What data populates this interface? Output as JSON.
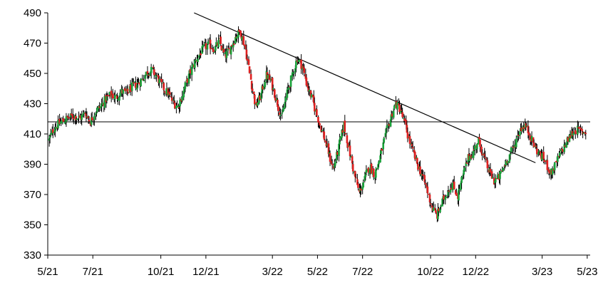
{
  "chart_data": {
    "type": "candlestick",
    "title": "",
    "xlabel": "",
    "ylabel": "",
    "ylim": [
      330,
      490
    ],
    "yticks": [
      330,
      350,
      370,
      390,
      410,
      430,
      450,
      470,
      490
    ],
    "xticks": [
      {
        "label": "5/21",
        "date": "2021-05-01"
      },
      {
        "label": "7/21",
        "date": "2021-07-01"
      },
      {
        "label": "10/21",
        "date": "2021-10-01"
      },
      {
        "label": "12/21",
        "date": "2021-12-01"
      },
      {
        "label": "3/22",
        "date": "2022-03-01"
      },
      {
        "label": "5/22",
        "date": "2022-05-01"
      },
      {
        "label": "7/22",
        "date": "2022-07-01"
      },
      {
        "label": "10/22",
        "date": "2022-10-01"
      },
      {
        "label": "12/22",
        "date": "2022-12-01"
      },
      {
        "label": "3/23",
        "date": "2023-03-01"
      },
      {
        "label": "5/23",
        "date": "2023-05-01"
      }
    ],
    "xlim": [
      "2021-05-01",
      "2023-05-05"
    ],
    "up_color": "#1aa33a",
    "down_color": "#e02020",
    "wick_color": "#000000",
    "series": [
      {
        "values": [
          [
            "2021-05-03",
            406
          ],
          [
            "2021-05-10",
            414
          ],
          [
            "2021-05-17",
            417
          ],
          [
            "2021-05-24",
            419
          ],
          [
            "2021-05-31",
            421
          ],
          [
            "2021-06-07",
            422
          ],
          [
            "2021-06-14",
            420
          ],
          [
            "2021-06-21",
            424
          ],
          [
            "2021-06-28",
            418
          ],
          [
            "2021-07-05",
            425
          ],
          [
            "2021-07-12",
            428
          ],
          [
            "2021-07-19",
            433
          ],
          [
            "2021-07-26",
            436
          ],
          [
            "2021-08-02",
            434
          ],
          [
            "2021-08-09",
            438
          ],
          [
            "2021-08-16",
            437
          ],
          [
            "2021-08-23",
            441
          ],
          [
            "2021-08-30",
            443
          ],
          [
            "2021-09-06",
            446
          ],
          [
            "2021-09-13",
            451
          ],
          [
            "2021-09-20",
            452
          ],
          [
            "2021-09-27",
            447
          ],
          [
            "2021-10-04",
            441
          ],
          [
            "2021-10-11",
            437
          ],
          [
            "2021-10-18",
            431
          ],
          [
            "2021-10-25",
            428
          ],
          [
            "2021-11-01",
            438
          ],
          [
            "2021-11-08",
            448
          ],
          [
            "2021-11-15",
            456
          ],
          [
            "2021-11-22",
            462
          ],
          [
            "2021-11-29",
            467
          ],
          [
            "2021-12-06",
            469
          ],
          [
            "2021-12-13",
            466
          ],
          [
            "2021-12-20",
            471
          ],
          [
            "2021-12-27",
            461
          ],
          [
            "2022-01-03",
            466
          ],
          [
            "2022-01-10",
            474
          ],
          [
            "2022-01-17",
            478
          ],
          [
            "2022-01-24",
            466
          ],
          [
            "2022-01-31",
            446
          ],
          [
            "2022-02-07",
            428
          ],
          [
            "2022-02-14",
            436
          ],
          [
            "2022-02-21",
            449
          ],
          [
            "2022-02-28",
            444
          ],
          [
            "2022-03-07",
            432
          ],
          [
            "2022-03-14",
            421
          ],
          [
            "2022-03-21",
            437
          ],
          [
            "2022-03-28",
            448
          ],
          [
            "2022-04-04",
            460
          ],
          [
            "2022-04-11",
            455
          ],
          [
            "2022-04-18",
            441
          ],
          [
            "2022-04-25",
            432
          ],
          [
            "2022-05-02",
            420
          ],
          [
            "2022-05-09",
            410
          ],
          [
            "2022-05-16",
            398
          ],
          [
            "2022-05-23",
            387
          ],
          [
            "2022-05-30",
            401
          ],
          [
            "2022-06-06",
            416
          ],
          [
            "2022-06-13",
            400
          ],
          [
            "2022-06-20",
            384
          ],
          [
            "2022-06-27",
            371
          ],
          [
            "2022-07-04",
            380
          ],
          [
            "2022-07-11",
            389
          ],
          [
            "2022-07-18",
            383
          ],
          [
            "2022-07-25",
            395
          ],
          [
            "2022-08-01",
            408
          ],
          [
            "2022-08-08",
            420
          ],
          [
            "2022-08-15",
            430
          ],
          [
            "2022-08-22",
            426
          ],
          [
            "2022-08-29",
            414
          ],
          [
            "2022-09-05",
            402
          ],
          [
            "2022-09-12",
            392
          ],
          [
            "2022-09-19",
            384
          ],
          [
            "2022-09-26",
            374
          ],
          [
            "2022-10-03",
            362
          ],
          [
            "2022-10-10",
            356
          ],
          [
            "2022-10-17",
            365
          ],
          [
            "2022-10-24",
            372
          ],
          [
            "2022-10-31",
            377
          ],
          [
            "2022-11-07",
            369
          ],
          [
            "2022-11-14",
            382
          ],
          [
            "2022-11-21",
            394
          ],
          [
            "2022-11-28",
            398
          ],
          [
            "2022-12-05",
            406
          ],
          [
            "2022-12-12",
            396
          ],
          [
            "2022-12-19",
            386
          ],
          [
            "2022-12-26",
            379
          ],
          [
            "2023-01-02",
            381
          ],
          [
            "2023-01-09",
            389
          ],
          [
            "2023-01-16",
            396
          ],
          [
            "2023-01-23",
            402
          ],
          [
            "2023-01-30",
            413
          ],
          [
            "2023-02-06",
            416
          ],
          [
            "2023-02-13",
            409
          ],
          [
            "2023-02-20",
            401
          ],
          [
            "2023-02-27",
            396
          ],
          [
            "2023-03-06",
            392
          ],
          [
            "2023-03-13",
            384
          ],
          [
            "2023-03-20",
            390
          ],
          [
            "2023-03-27",
            398
          ],
          [
            "2023-04-03",
            404
          ],
          [
            "2023-04-10",
            410
          ],
          [
            "2023-04-17",
            413
          ],
          [
            "2023-04-24",
            411
          ],
          [
            "2023-05-01",
            412
          ]
        ]
      }
    ],
    "annotations": [
      {
        "type": "trendline",
        "from": [
          "2021-11-15",
          490
        ],
        "to": [
          "2023-02-20",
          391
        ]
      },
      {
        "type": "hline",
        "y": 418
      }
    ]
  }
}
